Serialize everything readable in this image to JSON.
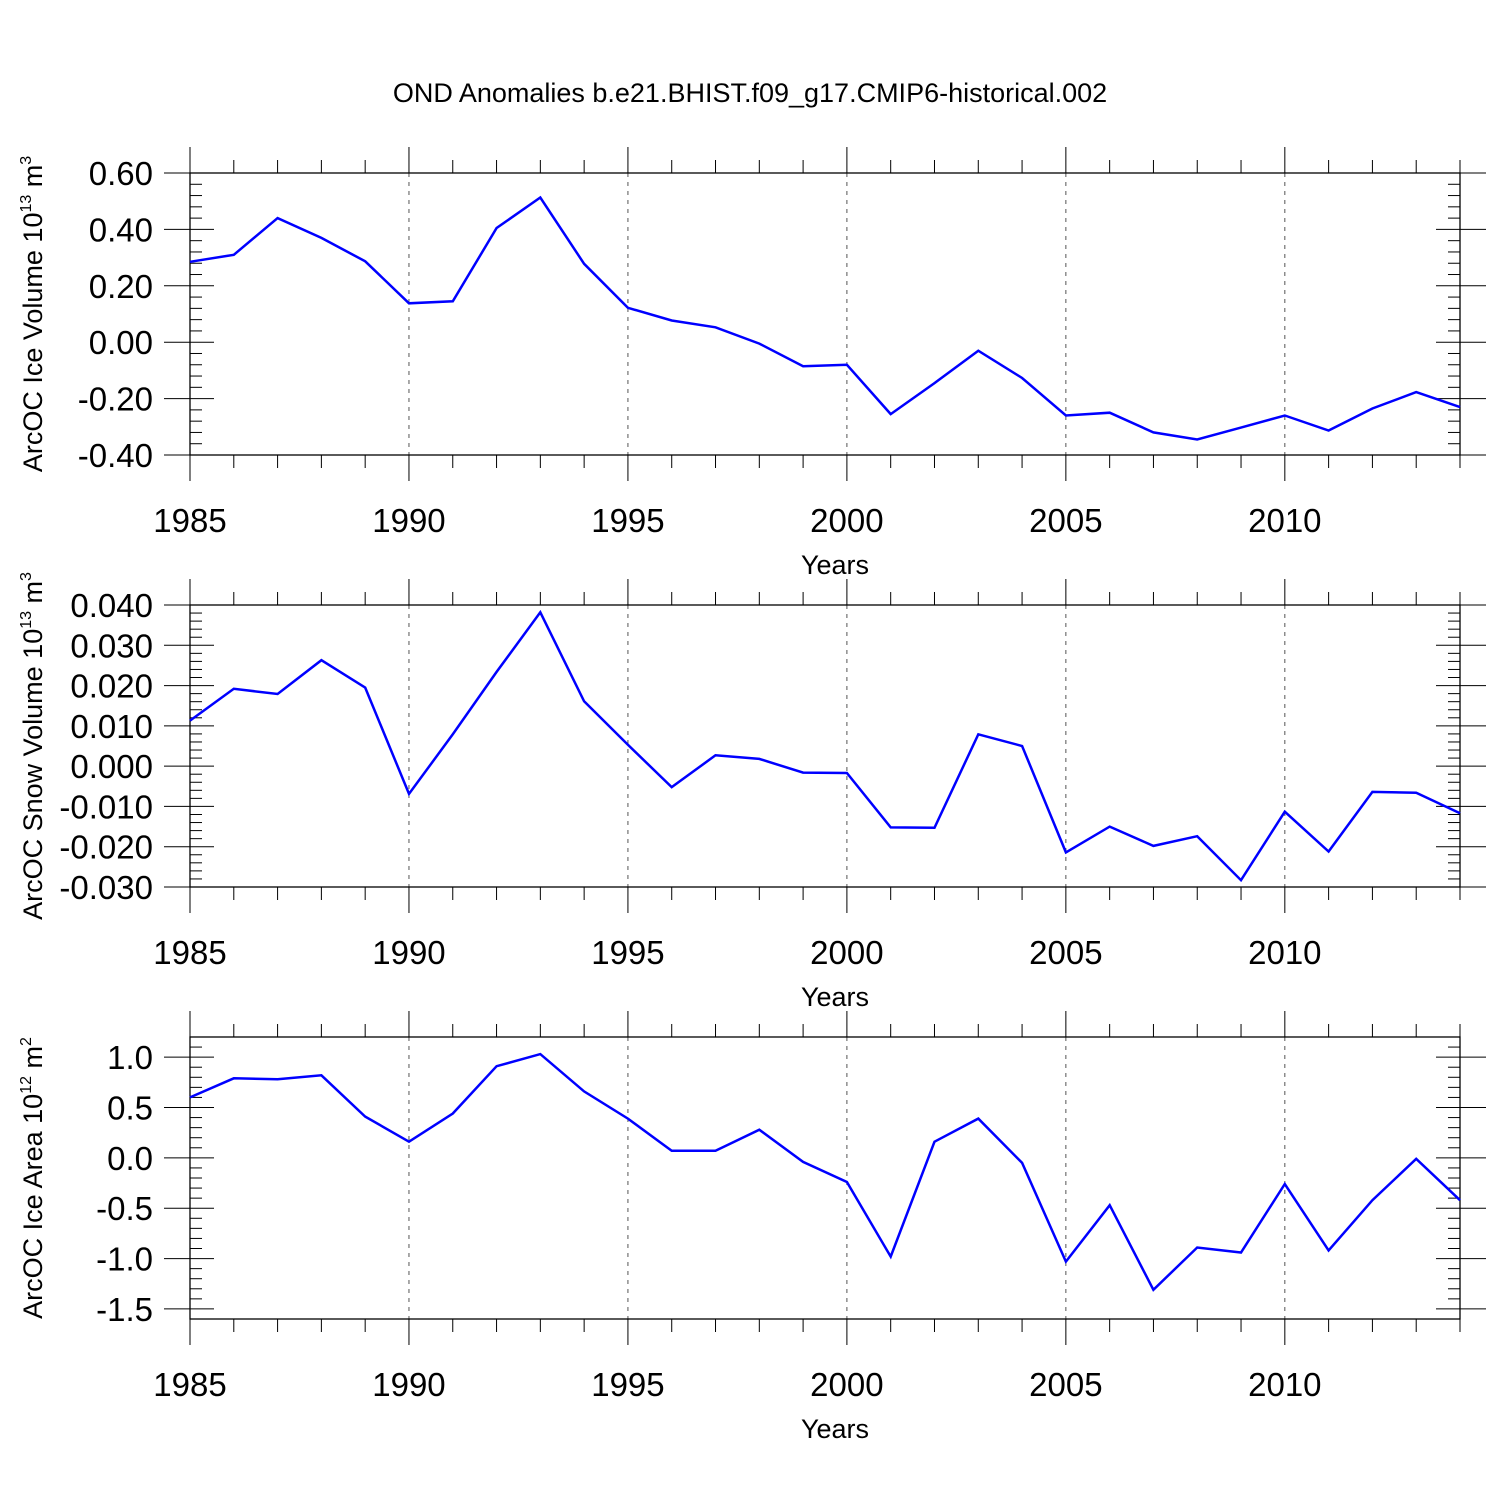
{
  "title": "OND Anomalies b.e21.BHIST.f09_g17.CMIP6-historical.002",
  "colors": {
    "line": "#0000ff",
    "axis": "#000000",
    "grid": "#555555"
  },
  "chart_data": [
    {
      "type": "line",
      "ylabel_main": "ArcOC Ice Volume 10",
      "ylabel_exp": "13",
      "ylabel_unit": " m",
      "ylabel_unit_exp": "3",
      "xlabel": "Years",
      "xlim": [
        1985,
        2014
      ],
      "ylim": [
        -0.4,
        0.6
      ],
      "yticks": [
        -0.4,
        -0.2,
        0.0,
        0.2,
        0.4,
        0.6
      ],
      "ytick_labels": [
        "-0.40",
        "-0.20",
        "0.00",
        "0.20",
        "0.40",
        "0.60"
      ],
      "xticks": [
        1985,
        1990,
        1995,
        2000,
        2005,
        2010
      ],
      "xtick_labels": [
        "1985",
        "1990",
        "1995",
        "2000",
        "2005",
        "2010"
      ],
      "x": [
        1985,
        1986,
        1987,
        1988,
        1989,
        1990,
        1991,
        1992,
        1993,
        1994,
        1995,
        1996,
        1997,
        1998,
        1999,
        2000,
        2001,
        2002,
        2003,
        2004,
        2005,
        2006,
        2007,
        2008,
        2009,
        2010,
        2011,
        2012,
        2013,
        2014
      ],
      "values": [
        0.285,
        0.31,
        0.44,
        0.37,
        0.287,
        0.138,
        0.145,
        0.405,
        0.513,
        0.278,
        0.122,
        0.077,
        0.053,
        -0.005,
        -0.085,
        -0.08,
        -0.255,
        -0.145,
        -0.03,
        -0.127,
        -0.26,
        -0.25,
        -0.32,
        -0.345,
        -0.303,
        -0.26,
        -0.313,
        -0.235,
        -0.177,
        -0.23
      ]
    },
    {
      "type": "line",
      "ylabel_main": "ArcOC Snow Volume 10",
      "ylabel_exp": "13",
      "ylabel_unit": " m",
      "ylabel_unit_exp": "3",
      "xlabel": "Years",
      "xlim": [
        1985,
        2014
      ],
      "ylim": [
        -0.03,
        0.04
      ],
      "yticks": [
        -0.03,
        -0.02,
        -0.01,
        0.0,
        0.01,
        0.02,
        0.03,
        0.04
      ],
      "ytick_labels": [
        "-0.030",
        "-0.020",
        "-0.010",
        "0.000",
        "0.010",
        "0.020",
        "0.030",
        "0.040"
      ],
      "xticks": [
        1985,
        1990,
        1995,
        2000,
        2005,
        2010
      ],
      "xtick_labels": [
        "1985",
        "1990",
        "1995",
        "2000",
        "2005",
        "2010"
      ],
      "x": [
        1985,
        1986,
        1987,
        1988,
        1989,
        1990,
        1991,
        1992,
        1993,
        1994,
        1995,
        1996,
        1997,
        1998,
        1999,
        2000,
        2001,
        2002,
        2003,
        2004,
        2005,
        2006,
        2007,
        2008,
        2009,
        2010,
        2011,
        2012,
        2013,
        2014
      ],
      "values": [
        0.0113,
        0.0192,
        0.0179,
        0.0263,
        0.0195,
        -0.0069,
        0.0079,
        0.0234,
        0.0382,
        0.0161,
        0.0053,
        -0.0052,
        0.0027,
        0.0018,
        -0.0016,
        -0.0017,
        -0.0152,
        -0.0153,
        0.0079,
        0.005,
        -0.0214,
        -0.015,
        -0.0198,
        -0.0174,
        -0.0283,
        -0.0113,
        -0.0212,
        -0.0064,
        -0.0066,
        -0.0117
      ]
    },
    {
      "type": "line",
      "ylabel_main": "ArcOC Ice Area 10",
      "ylabel_exp": "12",
      "ylabel_unit": " m",
      "ylabel_unit_exp": "2",
      "xlabel": "Years",
      "xlim": [
        1985,
        2014
      ],
      "ylim": [
        -1.6,
        1.2
      ],
      "yticks": [
        -1.5,
        -1.0,
        -0.5,
        0.0,
        0.5,
        1.0
      ],
      "ytick_labels": [
        "-1.5",
        "-1.0",
        "-0.5",
        "0.0",
        "0.5",
        "1.0"
      ],
      "xticks": [
        1985,
        1990,
        1995,
        2000,
        2005,
        2010
      ],
      "xtick_labels": [
        "1985",
        "1990",
        "1995",
        "2000",
        "2005",
        "2010"
      ],
      "x": [
        1985,
        1986,
        1987,
        1988,
        1989,
        1990,
        1991,
        1992,
        1993,
        1994,
        1995,
        1996,
        1997,
        1998,
        1999,
        2000,
        2001,
        2002,
        2003,
        2004,
        2005,
        2006,
        2007,
        2008,
        2009,
        2010,
        2011,
        2012,
        2013,
        2014
      ],
      "values": [
        0.6,
        0.79,
        0.78,
        0.82,
        0.41,
        0.16,
        0.44,
        0.91,
        1.03,
        0.66,
        0.39,
        0.07,
        0.07,
        0.28,
        -0.04,
        -0.24,
        -0.98,
        0.16,
        0.39,
        -0.05,
        -1.03,
        -0.47,
        -1.31,
        -0.89,
        -0.94,
        -0.26,
        -0.92,
        -0.42,
        -0.01,
        -0.42
      ]
    }
  ]
}
